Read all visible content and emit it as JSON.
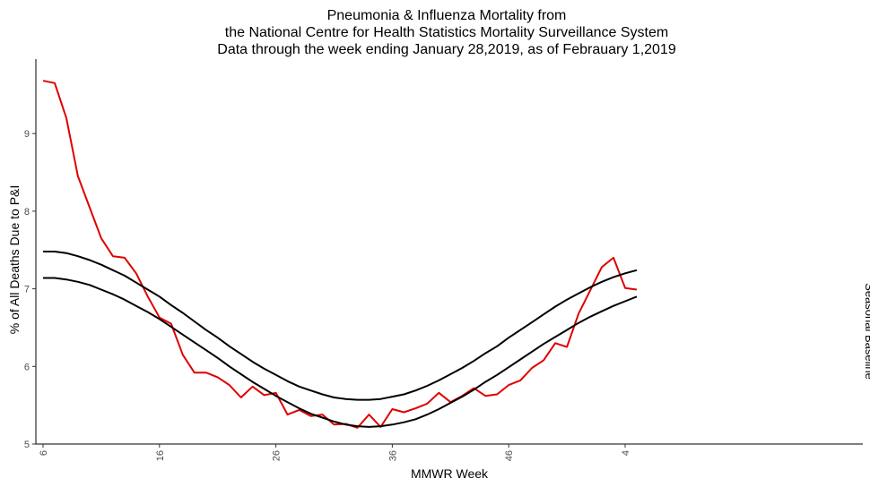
{
  "chart_data": {
    "type": "line",
    "title": [
      "Pneumonia & Influenza Mortality from",
      "the National Centre for Health Statistics Mortality Surveillance System",
      "Data through the week ending January 28,2019,  as of Febrauary 1,2019"
    ],
    "xlabel": "MMWR Week",
    "ylabel": "% of All Deaths Due to P&I",
    "side_label": "Seasonal Baseline",
    "x_ticks": [
      {
        "label": "6",
        "index": 0
      },
      {
        "label": "16",
        "index": 10
      },
      {
        "label": "26",
        "index": 20
      },
      {
        "label": "36",
        "index": 30
      },
      {
        "label": "46",
        "index": 40
      },
      {
        "label": "4",
        "index": 50
      }
    ],
    "y_ticks": [
      5,
      6,
      7,
      8,
      9
    ],
    "ylim": [
      5,
      9.85
    ],
    "xlim": [
      0,
      70
    ],
    "grid": false,
    "series": [
      {
        "color": "#e00000",
        "values": [
          9.68,
          9.65,
          9.2,
          8.45,
          8.05,
          7.65,
          7.42,
          7.4,
          7.2,
          6.9,
          6.63,
          6.55,
          6.15,
          5.92,
          5.92,
          5.86,
          5.76,
          5.6,
          5.74,
          5.63,
          5.66,
          5.38,
          5.44,
          5.36,
          5.38,
          5.25,
          5.26,
          5.21,
          5.38,
          5.22,
          5.45,
          5.41,
          5.46,
          5.52,
          5.66,
          5.54,
          5.62,
          5.72,
          5.62,
          5.64,
          5.76,
          5.82,
          5.98,
          6.08,
          6.3,
          6.25,
          6.68,
          6.98,
          7.28,
          7.4,
          7.01,
          6.99
        ]
      },
      {
        "color": "#000000",
        "values": [
          7.48,
          7.48,
          7.46,
          7.42,
          7.37,
          7.31,
          7.24,
          7.17,
          7.08,
          6.99,
          6.9,
          6.79,
          6.69,
          6.58,
          6.47,
          6.37,
          6.26,
          6.16,
          6.06,
          5.97,
          5.89,
          5.81,
          5.74,
          5.69,
          5.64,
          5.6,
          5.58,
          5.57,
          5.57,
          5.58,
          5.61,
          5.64,
          5.69,
          5.75,
          5.82,
          5.9,
          5.98,
          6.07,
          6.17,
          6.26,
          6.37,
          6.47,
          6.57,
          6.67,
          6.77,
          6.86,
          6.94,
          7.02,
          7.09,
          7.15,
          7.2,
          7.24
        ]
      },
      {
        "color": "#000000",
        "values": [
          7.14,
          7.14,
          7.12,
          7.09,
          7.05,
          6.99,
          6.93,
          6.86,
          6.78,
          6.7,
          6.61,
          6.51,
          6.41,
          6.31,
          6.21,
          6.11,
          6.0,
          5.9,
          5.8,
          5.71,
          5.62,
          5.54,
          5.46,
          5.39,
          5.34,
          5.29,
          5.25,
          5.23,
          5.22,
          5.23,
          5.25,
          5.28,
          5.32,
          5.38,
          5.45,
          5.53,
          5.61,
          5.7,
          5.8,
          5.89,
          5.99,
          6.09,
          6.19,
          6.29,
          6.38,
          6.47,
          6.56,
          6.64,
          6.71,
          6.78,
          6.84,
          6.9
        ]
      }
    ]
  }
}
